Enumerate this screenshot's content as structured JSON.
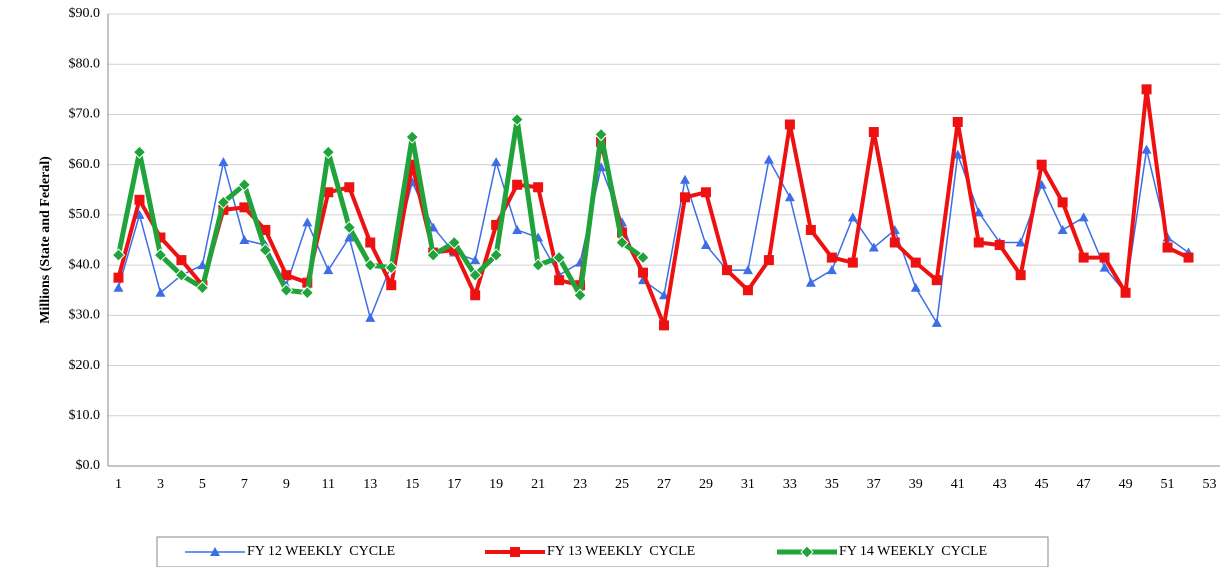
{
  "chart_data": {
    "type": "line",
    "y_label": "Millions (State and Federal)",
    "categories": [
      "1",
      null,
      "3",
      null,
      "5",
      null,
      "7",
      null,
      "9",
      null,
      "11",
      null,
      "13",
      null,
      "15",
      null,
      "17",
      null,
      "19",
      null,
      "21",
      null,
      "23",
      null,
      "25",
      null,
      "27",
      null,
      "29",
      null,
      "31",
      null,
      "33",
      null,
      "35",
      null,
      "37",
      null,
      "39",
      null,
      "41",
      null,
      "43",
      null,
      "45",
      null,
      "47",
      null,
      "49",
      null,
      "51",
      null,
      "53"
    ],
    "ylim": [
      0,
      90
    ],
    "yticks": [
      {
        "value": 0,
        "label": "$0.0"
      },
      {
        "value": 10,
        "label": "$10.0"
      },
      {
        "value": 20,
        "label": "$20.0"
      },
      {
        "value": 30,
        "label": "$30.0"
      },
      {
        "value": 40,
        "label": "$40.0"
      },
      {
        "value": 50,
        "label": "$50.0"
      },
      {
        "value": 60,
        "label": "$60.0"
      },
      {
        "value": 70,
        "label": "$70.0"
      },
      {
        "value": 80,
        "label": "$80.0"
      },
      {
        "value": 90,
        "label": "$90.0"
      }
    ],
    "grid": true,
    "legend": "bottom",
    "series": [
      {
        "name": "FY 12 WEEKLY  CYCLE",
        "color": "#3b6ee8",
        "marker": "triangle",
        "values": [
          35.5,
          50,
          34.5,
          38,
          40,
          60.5,
          45,
          44,
          36,
          48.5,
          39,
          45.5,
          29.5,
          40,
          56.5,
          47.5,
          42.5,
          41,
          60.5,
          47,
          45.5,
          38,
          40.5,
          59.5,
          48.5,
          37,
          34,
          57,
          44,
          39,
          39,
          61,
          53.5,
          36.5,
          39,
          49.5,
          43.5,
          47,
          35.5,
          28.5,
          62,
          50.5,
          44.5,
          44.5,
          56,
          47,
          49.5,
          39.5,
          34.5,
          63,
          45.5,
          42.5,
          null
        ]
      },
      {
        "name": "FY 13 WEEKLY  CYCLE",
        "color": "#ee1111",
        "marker": "square",
        "values": [
          37.5,
          53,
          45.5,
          41,
          36,
          51,
          51.5,
          47,
          38,
          36.5,
          54.5,
          55.5,
          44.5,
          36,
          60,
          42.5,
          43,
          34,
          48,
          56,
          55.5,
          37,
          36,
          64.5,
          46.5,
          38.5,
          28,
          53.5,
          54.5,
          39,
          35,
          41,
          68,
          47,
          41.5,
          40.5,
          66.5,
          44.5,
          40.5,
          37,
          68.5,
          44.5,
          44,
          38,
          60,
          52.5,
          41.5,
          41.5,
          34.5,
          75,
          43.5,
          41.5,
          null
        ]
      },
      {
        "name": "FY 14 WEEKLY  CYCLE",
        "color": "#1fa33a",
        "marker": "diamond",
        "values": [
          42,
          62.5,
          42,
          38,
          35.5,
          52.5,
          56,
          43,
          35,
          34.5,
          62.5,
          47.5,
          40,
          39.5,
          65.5,
          42,
          44.5,
          38,
          42,
          69,
          40,
          41.5,
          34,
          66,
          44.5,
          41.5,
          null,
          null,
          null,
          null,
          null,
          null,
          null,
          null,
          null,
          null,
          null,
          null,
          null,
          null,
          null,
          null,
          null,
          null,
          null,
          null,
          null,
          null,
          null,
          null,
          null,
          null,
          null
        ]
      }
    ]
  }
}
